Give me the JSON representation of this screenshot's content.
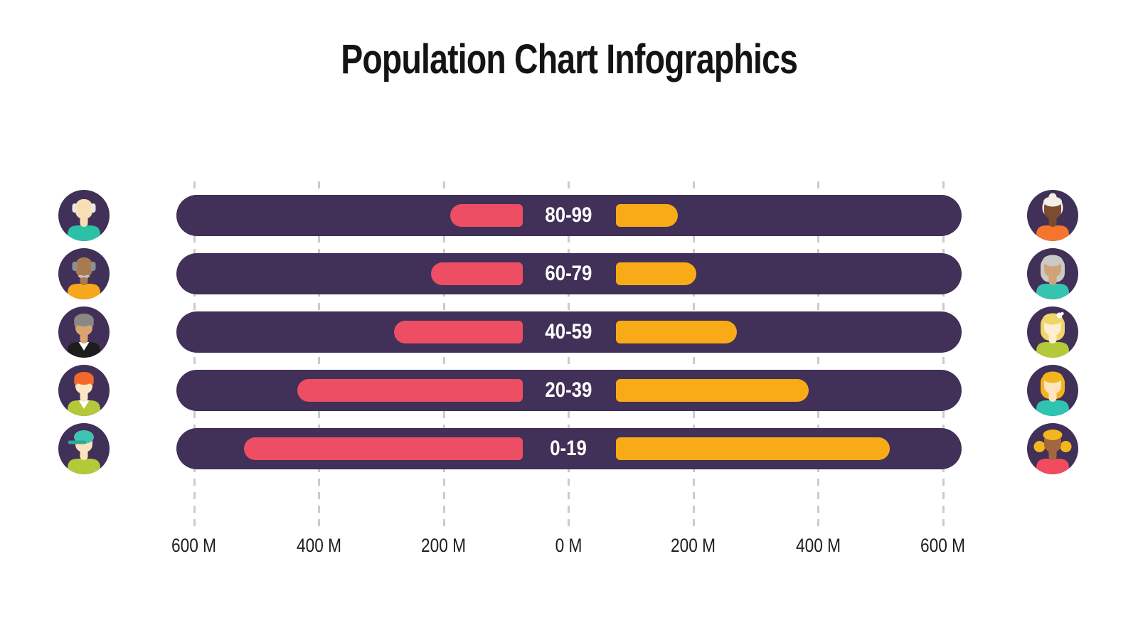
{
  "title": "Population Chart Infographics",
  "colors": {
    "background": "#ffffff",
    "track": "#413057",
    "left_bar": "#ee4e64",
    "right_bar": "#f9ab17",
    "bar_label_text": "#ffffff",
    "axis_text": "#1d1d1d",
    "gridline": "#cbcbcb",
    "title_text": "#141414"
  },
  "chart_data": {
    "type": "bar",
    "orientation": "horizontal-diverging",
    "title": "Population Chart Infographics",
    "unit": "M (millions of people)",
    "categories": [
      "80-99",
      "60-79",
      "40-59",
      "20-39",
      "0-19"
    ],
    "series": [
      {
        "name": "left",
        "color": "#ee4e64",
        "inner_start": 73,
        "values": [
          190,
          220,
          280,
          435,
          520
        ]
      },
      {
        "name": "right",
        "color": "#f9ab17",
        "inner_start": 76,
        "values": [
          175,
          205,
          270,
          385,
          515
        ]
      }
    ],
    "axis": {
      "ticks": [
        -600,
        -400,
        -200,
        0,
        200,
        400,
        600
      ],
      "tick_labels": [
        "600 M",
        "400 M",
        "200 M",
        "0 M",
        "200 M",
        "400 M",
        "600 M"
      ],
      "range": [
        -630,
        630
      ],
      "grid": "dashed-vertical",
      "legend": "none"
    }
  },
  "avatars": {
    "left": [
      {
        "name": "elderly-man-teal-shirt",
        "style": "sides",
        "hair": "#eae7e1",
        "skin": "#f8dfb3",
        "shirt": "#2cc0a7"
      },
      {
        "name": "elderly-man-mustache",
        "style": "sides",
        "hair": "#8f8f8f",
        "skin": "#a87a50",
        "shirt": "#f6a71c",
        "mustache": "#c6c6c6"
      },
      {
        "name": "woman-gray-hair-black-jacket",
        "style": "short",
        "hair": "#8a8884",
        "skin": "#d9a472",
        "shirt": "#1d1d1d",
        "collar": "#ffffff"
      },
      {
        "name": "man-orange-hair",
        "style": "short",
        "hair": "#f4682c",
        "skin": "#fce7c3",
        "shirt": "#b4c939",
        "collar": "#ffffff"
      },
      {
        "name": "boy-teal-cap",
        "style": "cap",
        "hair": "#41c3b4",
        "brim": "#2fa99c",
        "skin": "#fbe3bd",
        "shirt": "#b4c939"
      }
    ],
    "right": [
      {
        "name": "elderly-woman-white-hair-wrap",
        "style": "bun",
        "hair": "#f3f0ea",
        "skin": "#7d4b2e",
        "shirt": "#f3752e"
      },
      {
        "name": "elderly-woman-teal-shirt",
        "style": "bob",
        "hair": "#cbc9c5",
        "skin": "#d0a378",
        "shirt": "#35c4b0"
      },
      {
        "name": "woman-blonde-flower",
        "style": "bob",
        "hair": "#f0d568",
        "skin": "#fdeed2",
        "shirt": "#b4c939",
        "flower": "#ffffff"
      },
      {
        "name": "woman-golden-hair",
        "style": "bob",
        "hair": "#f3b51e",
        "skin": "#fde4bc",
        "shirt": "#2fc4b2"
      },
      {
        "name": "girl-pigtails",
        "style": "pigtails",
        "hair": "#f3b71d",
        "skin": "#a3673f",
        "shirt": "#f04b5f"
      }
    ]
  }
}
